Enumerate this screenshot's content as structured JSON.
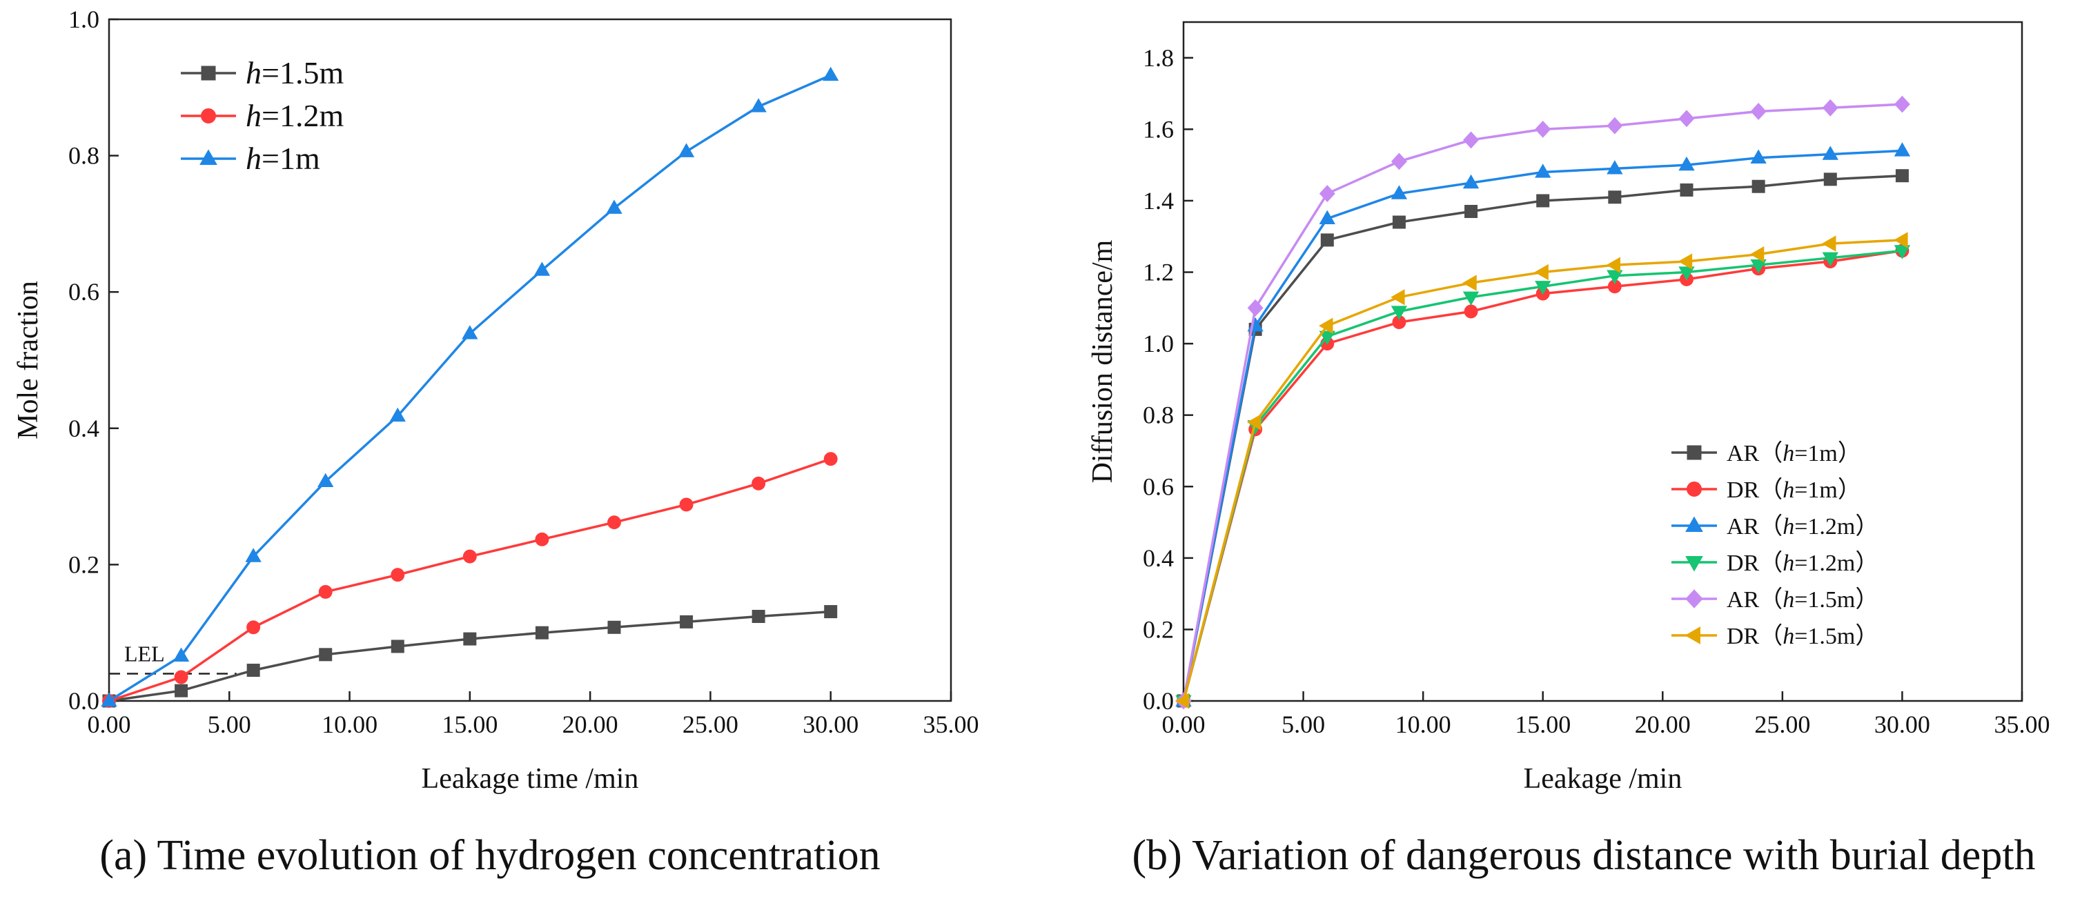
{
  "chart_data": [
    {
      "type": "line",
      "caption": "(a) Time evolution of hydrogen concentration",
      "xlabel": "Leakage time /min",
      "ylabel": "Mole fraction",
      "xlim": [
        0,
        35
      ],
      "ylim": [
        0,
        1.0
      ],
      "x_ticks": [
        "0.00",
        "5.00",
        "10.00",
        "15.00",
        "20.00",
        "25.00",
        "30.00",
        "35.00"
      ],
      "y_ticks": [
        "0.0",
        "0.2",
        "0.4",
        "0.6",
        "0.8",
        "1.0"
      ],
      "legend_position": "top-left",
      "annotation": {
        "text": "LEL",
        "value": 0.04
      },
      "x": [
        0,
        3,
        6,
        9,
        12,
        15,
        18,
        21,
        24,
        27,
        30
      ],
      "series": [
        {
          "name": "h=1.5m",
          "italic_prefix": "h",
          "suffix": "=1.5m",
          "color": "#4d4d4d",
          "marker": "square",
          "values": [
            0,
            0.015,
            0.045,
            0.068,
            0.08,
            0.091,
            0.1,
            0.108,
            0.116,
            0.124,
            0.131
          ]
        },
        {
          "name": "h=1.2m",
          "italic_prefix": "h",
          "suffix": "=1.2m",
          "color": "#ff3a3a",
          "marker": "circle",
          "values": [
            0,
            0.035,
            0.108,
            0.16,
            0.185,
            0.212,
            0.237,
            0.262,
            0.288,
            0.319,
            0.355
          ]
        },
        {
          "name": "h=1m",
          "italic_prefix": "h",
          "suffix": "=1m",
          "color": "#1f86e6",
          "marker": "triangle-up",
          "values": [
            0,
            0.066,
            0.212,
            0.322,
            0.418,
            0.539,
            0.632,
            0.723,
            0.806,
            0.872,
            0.918
          ]
        }
      ]
    },
    {
      "type": "line",
      "caption": "(b) Variation of dangerous distance with burial depth",
      "xlabel": "Leakage /min",
      "ylabel": "Diffusion distance/m",
      "xlim": [
        0,
        35
      ],
      "ylim": [
        0,
        1.9
      ],
      "x_ticks": [
        "0.00",
        "5.00",
        "10.00",
        "15.00",
        "20.00",
        "25.00",
        "30.00",
        "35.00"
      ],
      "y_ticks": [
        "0.0",
        "0.2",
        "0.4",
        "0.6",
        "0.8",
        "1.0",
        "1.2",
        "1.4",
        "1.6",
        "1.8"
      ],
      "legend_position": "bottom-right",
      "x": [
        0,
        3,
        6,
        9,
        12,
        15,
        18,
        21,
        24,
        27,
        30
      ],
      "series": [
        {
          "name": "AR（h=1m）",
          "prefix": "AR（",
          "italic_prefix": "h",
          "suffix": "=1m）",
          "color": "#4d4d4d",
          "marker": "square",
          "values": [
            0,
            1.04,
            1.29,
            1.34,
            1.37,
            1.4,
            1.41,
            1.43,
            1.44,
            1.46,
            1.47
          ]
        },
        {
          "name": "DR（h=1m）",
          "prefix": "DR（",
          "italic_prefix": "h",
          "suffix": "=1m）",
          "color": "#ff3a3a",
          "marker": "circle",
          "values": [
            0,
            0.76,
            1.0,
            1.06,
            1.09,
            1.14,
            1.16,
            1.18,
            1.21,
            1.23,
            1.26
          ]
        },
        {
          "name": "AR（h=1.2m）",
          "prefix": "AR（",
          "italic_prefix": "h",
          "suffix": "=1.2m）",
          "color": "#1f86e6",
          "marker": "triangle-up",
          "values": [
            0,
            1.05,
            1.35,
            1.42,
            1.45,
            1.48,
            1.49,
            1.5,
            1.52,
            1.53,
            1.54
          ]
        },
        {
          "name": "DR（h=1.2m）",
          "prefix": "DR（",
          "italic_prefix": "h",
          "suffix": "=1.2m）",
          "color": "#16c472",
          "marker": "triangle-down",
          "values": [
            0,
            0.77,
            1.02,
            1.09,
            1.13,
            1.16,
            1.19,
            1.2,
            1.22,
            1.24,
            1.26
          ]
        },
        {
          "name": "AR（h=1.5m）",
          "prefix": "AR（",
          "italic_prefix": "h",
          "suffix": "=1.5m）",
          "color": "#c78af2",
          "marker": "diamond",
          "values": [
            0,
            1.1,
            1.42,
            1.51,
            1.57,
            1.6,
            1.61,
            1.63,
            1.65,
            1.66,
            1.67
          ]
        },
        {
          "name": "DR（h=1.5m）",
          "prefix": "DR（",
          "italic_prefix": "h",
          "suffix": "=1.5m）",
          "color": "#e6a600",
          "marker": "triangle-left",
          "values": [
            0,
            0.78,
            1.05,
            1.13,
            1.17,
            1.2,
            1.22,
            1.23,
            1.25,
            1.28,
            1.29
          ]
        }
      ]
    }
  ]
}
